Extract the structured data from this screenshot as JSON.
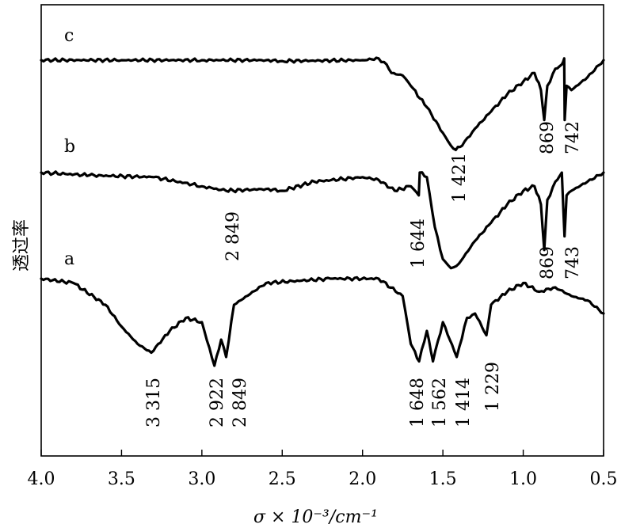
{
  "chart_data": {
    "type": "line",
    "xlabel": "σ × 10⁻³/cm⁻¹",
    "ylabel": "透过率",
    "xlim": [
      4.0,
      0.5
    ],
    "x_reversed": true,
    "x_ticks": [
      "4.0",
      "3.5",
      "3.0",
      "2.5",
      "2.0",
      "1.5",
      "1.0",
      "0.5"
    ],
    "grid": false,
    "series": [
      {
        "name": "c",
        "offset_level": "top",
        "points": [
          [
            4.0,
            0.0
          ],
          [
            3.5,
            0.0
          ],
          [
            3.0,
            0.0
          ],
          [
            2.6,
            0.0
          ],
          [
            2.5,
            0.01
          ],
          [
            2.0,
            0.0
          ],
          [
            1.9,
            -0.02
          ],
          [
            1.85,
            0.05
          ],
          [
            1.82,
            0.15
          ],
          [
            1.75,
            0.18
          ],
          [
            1.7,
            0.3
          ],
          [
            1.6,
            0.55
          ],
          [
            1.5,
            0.85
          ],
          [
            1.45,
            1.0
          ],
          [
            1.42,
            1.05
          ],
          [
            1.38,
            1.0
          ],
          [
            1.3,
            0.8
          ],
          [
            1.2,
            0.6
          ],
          [
            1.1,
            0.4
          ],
          [
            1.0,
            0.25
          ],
          [
            0.93,
            0.15
          ],
          [
            0.89,
            0.35
          ],
          [
            0.869,
            0.7
          ],
          [
            0.85,
            0.3
          ],
          [
            0.8,
            0.1
          ],
          [
            0.76,
            0.05
          ],
          [
            0.745,
            -0.02
          ],
          [
            0.742,
            0.7
          ],
          [
            0.73,
            0.3
          ],
          [
            0.7,
            0.35
          ],
          [
            0.6,
            0.2
          ],
          [
            0.5,
            0.0
          ]
        ],
        "peak_labels": [
          "1 421",
          "869",
          "742"
        ]
      },
      {
        "name": "b",
        "offset_level": "middle",
        "points": [
          [
            4.0,
            0.0
          ],
          [
            3.7,
            0.03
          ],
          [
            3.3,
            0.05
          ],
          [
            3.0,
            0.15
          ],
          [
            2.85,
            0.2
          ],
          [
            2.6,
            0.18
          ],
          [
            2.5,
            0.2
          ],
          [
            2.3,
            0.1
          ],
          [
            2.0,
            0.05
          ],
          [
            1.9,
            0.08
          ],
          [
            1.8,
            0.2
          ],
          [
            1.7,
            0.15
          ],
          [
            1.65,
            0.25
          ],
          [
            1.644,
            0.0
          ],
          [
            1.6,
            0.05
          ],
          [
            1.55,
            0.6
          ],
          [
            1.5,
            0.95
          ],
          [
            1.45,
            1.05
          ],
          [
            1.4,
            1.0
          ],
          [
            1.3,
            0.75
          ],
          [
            1.2,
            0.55
          ],
          [
            1.1,
            0.35
          ],
          [
            1.0,
            0.2
          ],
          [
            0.93,
            0.15
          ],
          [
            0.89,
            0.35
          ],
          [
            0.869,
            0.85
          ],
          [
            0.85,
            0.3
          ],
          [
            0.8,
            0.1
          ],
          [
            0.76,
            0.0
          ],
          [
            0.743,
            0.7
          ],
          [
            0.73,
            0.25
          ],
          [
            0.7,
            0.2
          ],
          [
            0.6,
            0.1
          ],
          [
            0.5,
            0.0
          ]
        ],
        "peak_labels": [
          "2 849",
          "1 644",
          "869",
          "743"
        ]
      },
      {
        "name": "a",
        "offset_level": "bottom",
        "points": [
          [
            4.0,
            0.0
          ],
          [
            3.8,
            0.05
          ],
          [
            3.6,
            0.3
          ],
          [
            3.5,
            0.55
          ],
          [
            3.4,
            0.75
          ],
          [
            3.315,
            0.85
          ],
          [
            3.2,
            0.6
          ],
          [
            3.1,
            0.45
          ],
          [
            3.0,
            0.5
          ],
          [
            2.922,
            1.0
          ],
          [
            2.88,
            0.7
          ],
          [
            2.849,
            0.9
          ],
          [
            2.8,
            0.3
          ],
          [
            2.6,
            0.05
          ],
          [
            2.2,
            0.0
          ],
          [
            1.9,
            0.0
          ],
          [
            1.75,
            0.2
          ],
          [
            1.7,
            0.75
          ],
          [
            1.648,
            0.95
          ],
          [
            1.6,
            0.6
          ],
          [
            1.562,
            0.95
          ],
          [
            1.5,
            0.5
          ],
          [
            1.414,
            0.9
          ],
          [
            1.35,
            0.45
          ],
          [
            1.3,
            0.4
          ],
          [
            1.229,
            0.65
          ],
          [
            1.2,
            0.3
          ],
          [
            1.1,
            0.15
          ],
          [
            1.0,
            0.05
          ],
          [
            0.9,
            0.15
          ],
          [
            0.8,
            0.1
          ],
          [
            0.7,
            0.2
          ],
          [
            0.6,
            0.25
          ],
          [
            0.5,
            0.4
          ]
        ],
        "peak_labels": [
          "3 315",
          "2 922",
          "2 849",
          "1 648",
          "1 562",
          "1 414",
          "1 229"
        ]
      }
    ],
    "labels": {
      "trace_c": "c",
      "trace_b": "b",
      "trace_a": "a",
      "c_1421": "1 421",
      "c_869": "869",
      "c_742": "742",
      "b_2849": "2 849",
      "b_1644": "1 644",
      "b_869": "869",
      "b_743": "743",
      "a_3315": "3 315",
      "a_2922": "2 922",
      "a_2849": "2 849",
      "a_1648": "1 648",
      "a_1562": "1 562",
      "a_1414": "1 414",
      "a_1229": "1 229"
    }
  }
}
